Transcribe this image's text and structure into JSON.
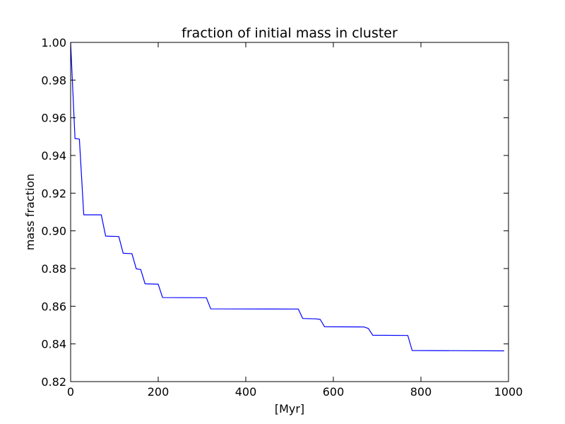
{
  "chart_data": {
    "type": "line",
    "title": "fraction of initial mass in cluster",
    "xlabel": "[Myr]",
    "ylabel": "mass fraction",
    "xlim": [
      0,
      1000
    ],
    "ylim": [
      0.82,
      1.0
    ],
    "x_ticks": [
      0,
      200,
      400,
      600,
      800,
      1000
    ],
    "x_tick_labels": [
      "0",
      "200",
      "400",
      "600",
      "800",
      "1000"
    ],
    "y_ticks": [
      0.82,
      0.84,
      0.86,
      0.88,
      0.9,
      0.92,
      0.94,
      0.96,
      0.98,
      1.0
    ],
    "y_tick_labels": [
      "0.82",
      "0.84",
      "0.86",
      "0.88",
      "0.90",
      "0.92",
      "0.94",
      "0.96",
      "0.98",
      "1.00"
    ],
    "grid": false,
    "legend": "none",
    "series": [
      {
        "color": "#0000ff",
        "x": [
          0,
          10,
          20,
          30,
          70,
          80,
          110,
          120,
          140,
          150,
          160,
          170,
          200,
          210,
          310,
          320,
          520,
          530,
          560,
          570,
          580,
          670,
          680,
          690,
          770,
          780,
          990
        ],
        "y": [
          1.0,
          0.949,
          0.9487,
          0.9085,
          0.9085,
          0.8972,
          0.897,
          0.8881,
          0.8879,
          0.8798,
          0.8795,
          0.8719,
          0.8717,
          0.8646,
          0.8645,
          0.8586,
          0.8585,
          0.8535,
          0.8533,
          0.853,
          0.8491,
          0.849,
          0.8482,
          0.8446,
          0.8445,
          0.8365,
          0.8363
        ]
      }
    ]
  }
}
